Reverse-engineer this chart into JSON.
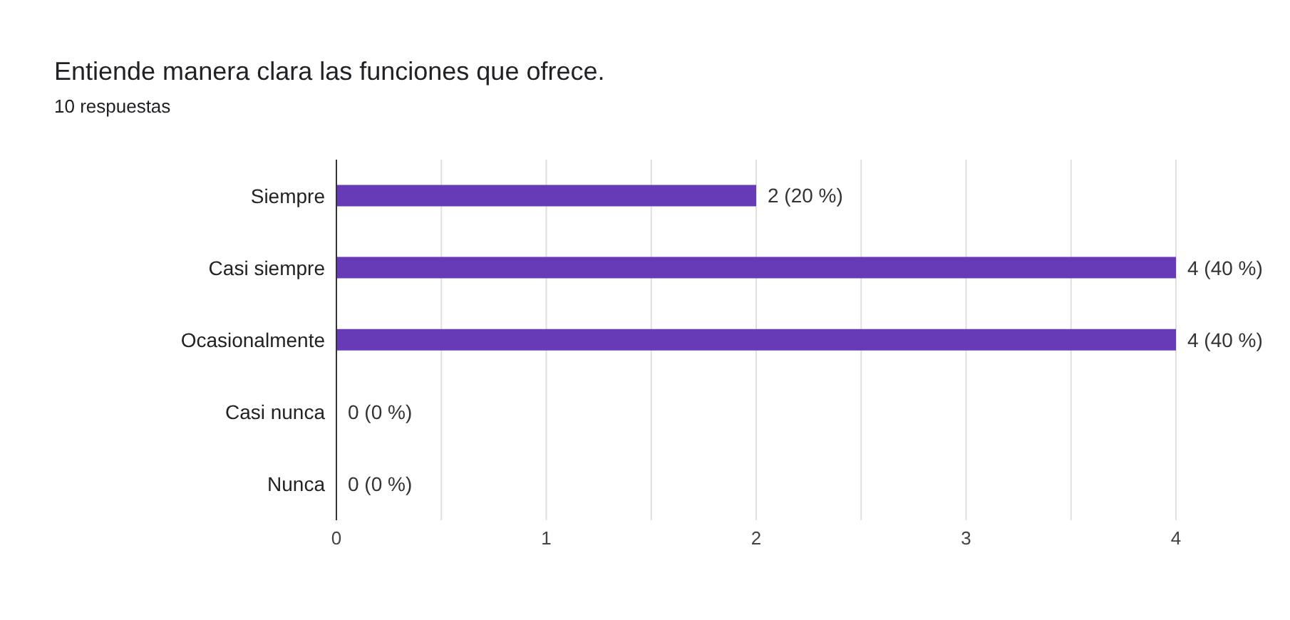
{
  "chart_data": {
    "type": "bar",
    "orientation": "horizontal",
    "title": "Entiende manera clara las funciones que ofrece.",
    "subtitle": "10 respuestas",
    "categories": [
      "Siempre",
      "Casi siempre",
      "Ocasionalmente",
      "Casi nunca",
      "Nunca"
    ],
    "values": [
      2,
      4,
      4,
      0,
      0
    ],
    "value_labels": [
      "2 (20 %)",
      "4 (40 %)",
      "4 (40 %)",
      "0 (0 %)",
      "0 (0 %)"
    ],
    "color": "#673ab7",
    "xlim": [
      0,
      4
    ],
    "xticks": [
      0,
      {
        "value": 0.5,
        "label": null
      },
      1,
      {
        "value": 1.5,
        "label": null
      },
      2,
      {
        "value": 2.5,
        "label": null
      },
      3,
      {
        "value": 3.5,
        "label": null
      },
      4
    ],
    "grid": "x"
  }
}
